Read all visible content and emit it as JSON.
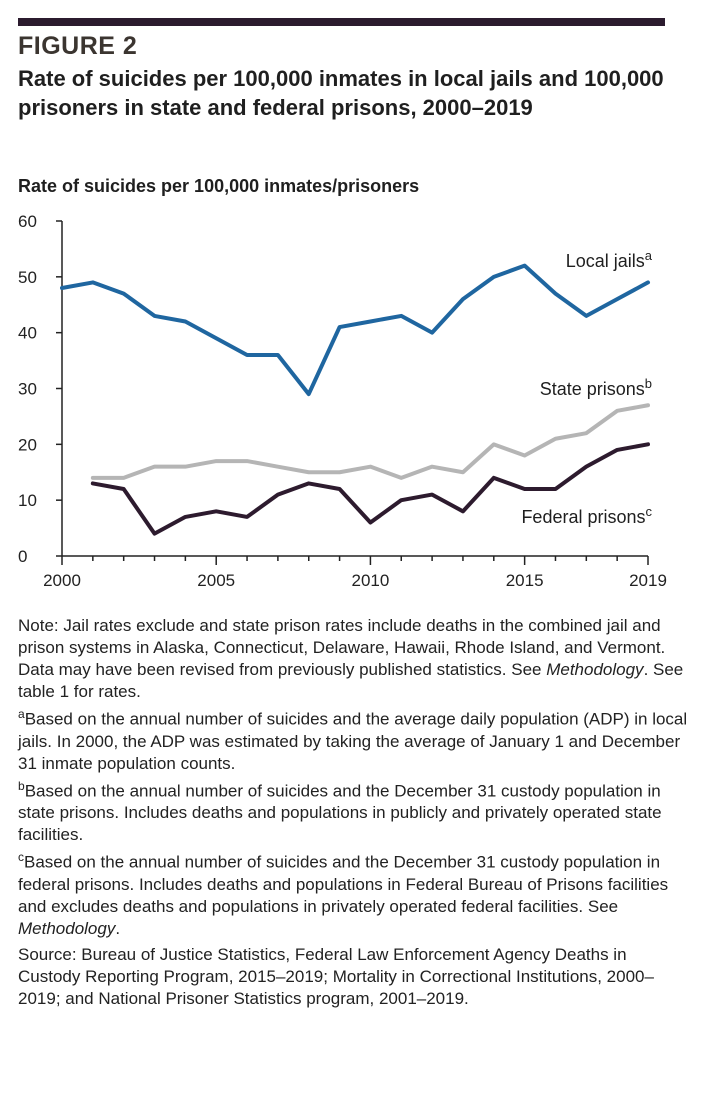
{
  "figure_label": "FIGURE 2",
  "figure_title": "Rate of suicides per 100,000 inmates in local jails and 100,000 prisoners in state and federal prisons, 2000–2019",
  "colors": {
    "rule": "#2b1b2e",
    "jails": "#1f66a0",
    "state": "#b5b5b5",
    "federal": "#2d1b2e"
  },
  "chart_data": {
    "type": "line",
    "title": "Rate of suicides per 100,000 inmates in local jails and 100,000 prisoners in state and federal prisons, 2000–2019",
    "ylabel": "Rate of suicides per 100,000 inmates/prisoners",
    "xlabel": "",
    "xlim": [
      2000,
      2019
    ],
    "ylim": [
      0,
      60
    ],
    "yticks": [
      0,
      10,
      20,
      30,
      40,
      50,
      60
    ],
    "xtick_labels": [
      "2000",
      "2005",
      "2010",
      "2015",
      "2019"
    ],
    "grid": false,
    "series": [
      {
        "name": "Local jails",
        "sup": "a",
        "color": "#1f66a0",
        "x": [
          2000,
          2001,
          2002,
          2003,
          2004,
          2005,
          2006,
          2007,
          2008,
          2009,
          2010,
          2011,
          2012,
          2013,
          2014,
          2015,
          2016,
          2017,
          2018,
          2019
        ],
        "values": [
          48,
          49,
          47,
          43,
          42,
          39,
          36,
          36,
          29,
          41,
          42,
          43,
          40,
          46,
          50,
          52,
          47,
          43,
          46,
          49
        ]
      },
      {
        "name": "State prisons",
        "sup": "b",
        "color": "#b5b5b5",
        "x": [
          2001,
          2002,
          2003,
          2004,
          2005,
          2006,
          2007,
          2008,
          2009,
          2010,
          2011,
          2012,
          2013,
          2014,
          2015,
          2016,
          2017,
          2018,
          2019
        ],
        "values": [
          14,
          14,
          16,
          16,
          17,
          17,
          16,
          15,
          15,
          16,
          14,
          16,
          15,
          20,
          18,
          21,
          22,
          26,
          27
        ]
      },
      {
        "name": "Federal prisons",
        "sup": "c",
        "color": "#2d1b2e",
        "x": [
          2001,
          2002,
          2003,
          2004,
          2005,
          2006,
          2007,
          2008,
          2009,
          2010,
          2011,
          2012,
          2013,
          2014,
          2015,
          2016,
          2017,
          2018,
          2019
        ],
        "values": [
          13,
          12,
          4,
          7,
          8,
          7,
          11,
          13,
          12,
          6,
          10,
          11,
          8,
          14,
          12,
          12,
          16,
          19,
          20
        ]
      }
    ]
  },
  "notes": {
    "note": "Note: Jail rates exclude and state prison rates include deaths in the combined jail and prison systems in Alaska, Connecticut, Delaware, Hawaii, Rhode Island, and Vermont. Data may have been revised from previously published statistics. See",
    "note_method": "Methodology",
    "note_end": ". See table 1 for rates.",
    "fn_a_mark": "a",
    "fn_a": "Based on the annual number of suicides and the average daily population (ADP) in local jails. In 2000, the ADP was estimated by taking the average of January 1 and December 31 inmate population counts.",
    "fn_b_mark": "b",
    "fn_b": "Based on the annual number of suicides and the December 31 custody population in state prisons. Includes deaths and populations in publicly and privately operated state facilities.",
    "fn_c_mark": "c",
    "fn_c": "Based on the annual number of suicides and the December 31 custody population in federal prisons. Includes deaths and populations in Federal Bureau of Prisons facilities and excludes deaths and populations in privately operated federal facilities. See",
    "fn_c_method": "Methodology",
    "fn_c_end": ".",
    "source": "Source: Bureau of Justice Statistics, Federal Law Enforcement Agency Deaths in Custody Reporting Program, 2015–2019; Mortality in Correctional Institutions, 2000–2019; and National Prisoner Statistics program, 2001–2019."
  }
}
